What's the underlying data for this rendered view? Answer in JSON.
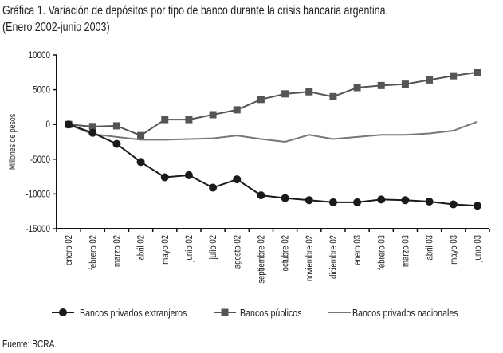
{
  "title_line1": "Gráfica 1. Variación de depósitos por tipo de banco durante la crisis bancaria argentina.",
  "title_line2": "(Enero 2002-junio 2003)",
  "source": "Fuente: BCRA.",
  "chart_data": {
    "type": "line",
    "title": "Gráfica 1. Variación de depósitos por tipo de banco durante la crisis bancaria argentina.",
    "subtitle": "(Enero 2002-junio 2003)",
    "ylabel": "Millones de pesos",
    "xlabel": "",
    "ylim": [
      -15000,
      10000
    ],
    "yticks": [
      10000,
      5000,
      0,
      -5000,
      -10000,
      -15000
    ],
    "grid": false,
    "legend": "bottom",
    "categories": [
      "enero 02",
      "febrero 02",
      "marzo 02",
      "abril 02",
      "mayo 02",
      "junio 02",
      "julio 02",
      "agosto 02",
      "septiembre 02",
      "octubre 02",
      "noviembre 02",
      "diciembre 02",
      "enero 03",
      "febrero 03",
      "marzo 03",
      "abril 03",
      "mayo 03",
      "junio 03"
    ],
    "series": [
      {
        "name": "Bancos privados extranjeros",
        "marker": "circle",
        "color": "#1a1a1a",
        "values": [
          0,
          -1200,
          -2800,
          -5400,
          -7600,
          -7300,
          -9100,
          -7900,
          -10200,
          -10600,
          -10900,
          -11200,
          -11200,
          -10800,
          -10900,
          -11100,
          -11500,
          -11700
        ]
      },
      {
        "name": "Bancos públicos",
        "marker": "square",
        "color": "#555555",
        "values": [
          0,
          -300,
          -200,
          -1600,
          700,
          700,
          1400,
          2100,
          3600,
          4400,
          4700,
          4000,
          5300,
          5600,
          5800,
          6400,
          7000,
          7500
        ]
      },
      {
        "name": "Bancos privados nacionales",
        "marker": "none",
        "color": "#777777",
        "values": [
          0,
          -1400,
          -1800,
          -2200,
          -2200,
          -2100,
          -2000,
          -1600,
          -2100,
          -2500,
          -1500,
          -2100,
          -1800,
          -1500,
          -1500,
          -1300,
          -900,
          400
        ]
      }
    ]
  }
}
